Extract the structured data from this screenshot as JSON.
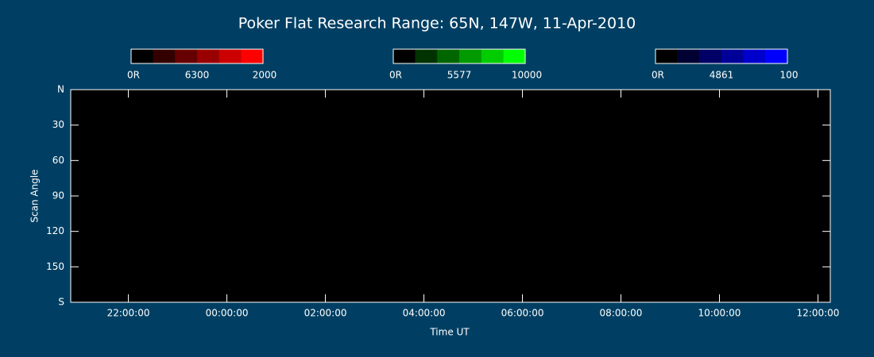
{
  "chart_data": {
    "type": "keogram",
    "title": "Poker Flat Research Range: 65N, 147W, 11-Apr-2010",
    "x_label": "Time UT",
    "y_label": "Scan Angle",
    "plot_color": "#000000",
    "xlim": [
      20.83,
      36.25
    ],
    "xticks": [
      {
        "value": 22,
        "label": "22:00:00"
      },
      {
        "value": 24,
        "label": "00:00:00"
      },
      {
        "value": 26,
        "label": "02:00:00"
      },
      {
        "value": 28,
        "label": "04:00:00"
      },
      {
        "value": 30,
        "label": "06:00:00"
      },
      {
        "value": 32,
        "label": "08:00:00"
      },
      {
        "value": 34,
        "label": "10:00:00"
      },
      {
        "value": 36,
        "label": "12:00:00"
      }
    ],
    "ylim": [
      0,
      180
    ],
    "yticks": [
      {
        "value": 0,
        "label": "N"
      },
      30,
      60,
      90,
      120,
      150,
      {
        "value": 180,
        "label": "S"
      }
    ],
    "colorbars": [
      {
        "min_label": "0R",
        "wavelength": "6300",
        "max": 2000,
        "colors": [
          "#000000",
          "#330000",
          "#660000",
          "#990000",
          "#cc0000",
          "#ff0000"
        ]
      },
      {
        "min_label": "0R",
        "wavelength": "5577",
        "max": 10000,
        "colors": [
          "#000000",
          "#003300",
          "#006600",
          "#009900",
          "#00cc00",
          "#00ff00"
        ]
      },
      {
        "min_label": "0R",
        "wavelength": "4861",
        "max": 100,
        "colors": [
          "#000000",
          "#000033",
          "#000066",
          "#000099",
          "#0000cc",
          "#0000ff"
        ]
      }
    ]
  }
}
